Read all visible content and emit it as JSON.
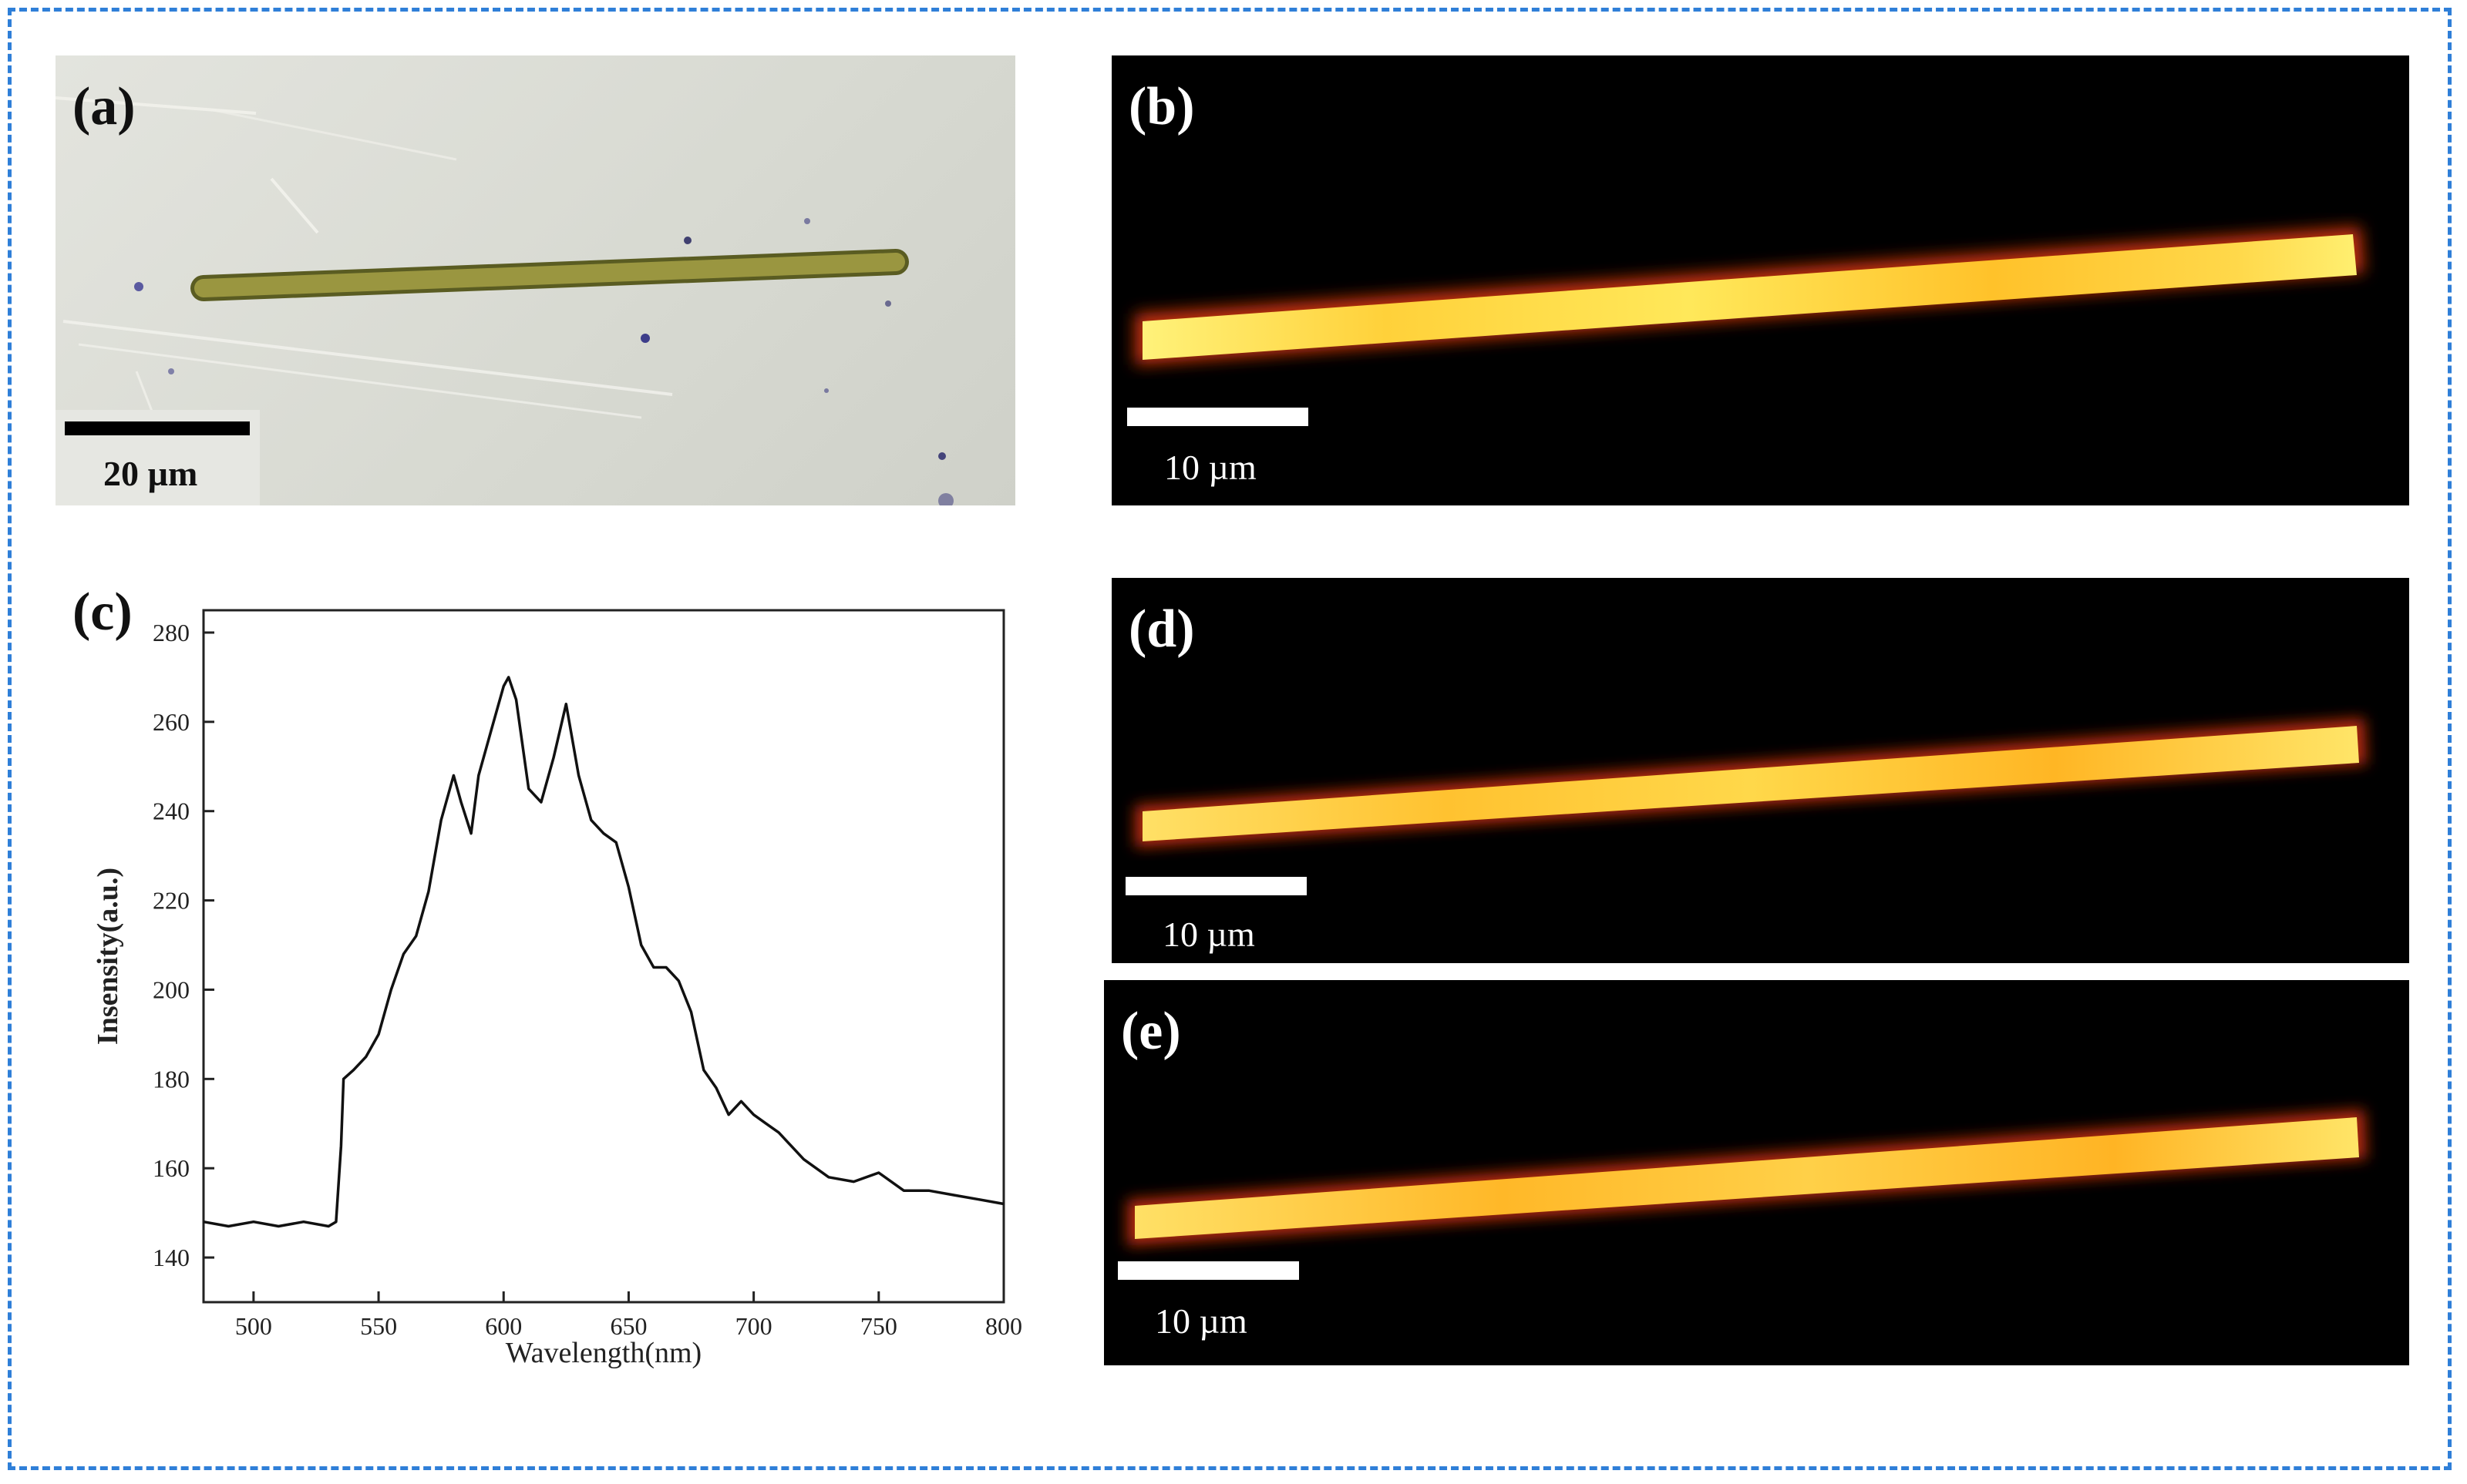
{
  "figure": {
    "panel_a": {
      "label": "(a)",
      "scale_label": "20 µm",
      "description_icon": "microscope-image"
    },
    "panel_b": {
      "label": "(b)",
      "scale_label": "10 µm"
    },
    "panel_d": {
      "label": "(d)",
      "scale_label": "10 µm"
    },
    "panel_e": {
      "label": "(e)",
      "scale_label": "10 µm"
    },
    "panel_c": {
      "label": "(c)"
    },
    "colors": {
      "frame": "#2f7fd8",
      "glow_core": "#fff27a",
      "glow_mid": "#ffb21a",
      "glow_edge": "#c2330c",
      "rod": "#9a9640",
      "background_a": "#dcded8"
    }
  },
  "chart_data": {
    "type": "line",
    "title": "",
    "xlabel": "Wavelength(nm)",
    "ylabel": "Insensity(a.u.)",
    "xlim": [
      480,
      800
    ],
    "ylim": [
      130,
      285
    ],
    "xticks": [
      500,
      550,
      600,
      650,
      700,
      750,
      800
    ],
    "yticks": [
      140,
      160,
      180,
      200,
      220,
      240,
      260,
      280
    ],
    "grid": false,
    "series": [
      {
        "x": [
          480,
          490,
          500,
          510,
          520,
          530,
          533,
          535,
          536,
          540,
          545,
          550,
          555,
          560,
          565,
          570,
          575,
          580,
          583,
          587,
          590,
          595,
          600,
          602,
          605,
          610,
          615,
          620,
          625,
          630,
          635,
          640,
          645,
          650,
          655,
          660,
          665,
          670,
          675,
          680,
          685,
          690,
          695,
          700,
          705,
          710,
          715,
          720,
          725,
          730,
          740,
          750,
          760,
          770,
          780,
          790,
          800
        ],
        "y": [
          148,
          147,
          148,
          147,
          148,
          147,
          148,
          165,
          180,
          182,
          185,
          190,
          200,
          208,
          212,
          222,
          238,
          248,
          242,
          235,
          248,
          258,
          268,
          270,
          265,
          245,
          242,
          252,
          264,
          248,
          238,
          235,
          233,
          223,
          210,
          205,
          205,
          202,
          195,
          182,
          178,
          172,
          175,
          172,
          170,
          168,
          165,
          162,
          160,
          158,
          157,
          159,
          155,
          155,
          154,
          153,
          152
        ]
      }
    ]
  }
}
